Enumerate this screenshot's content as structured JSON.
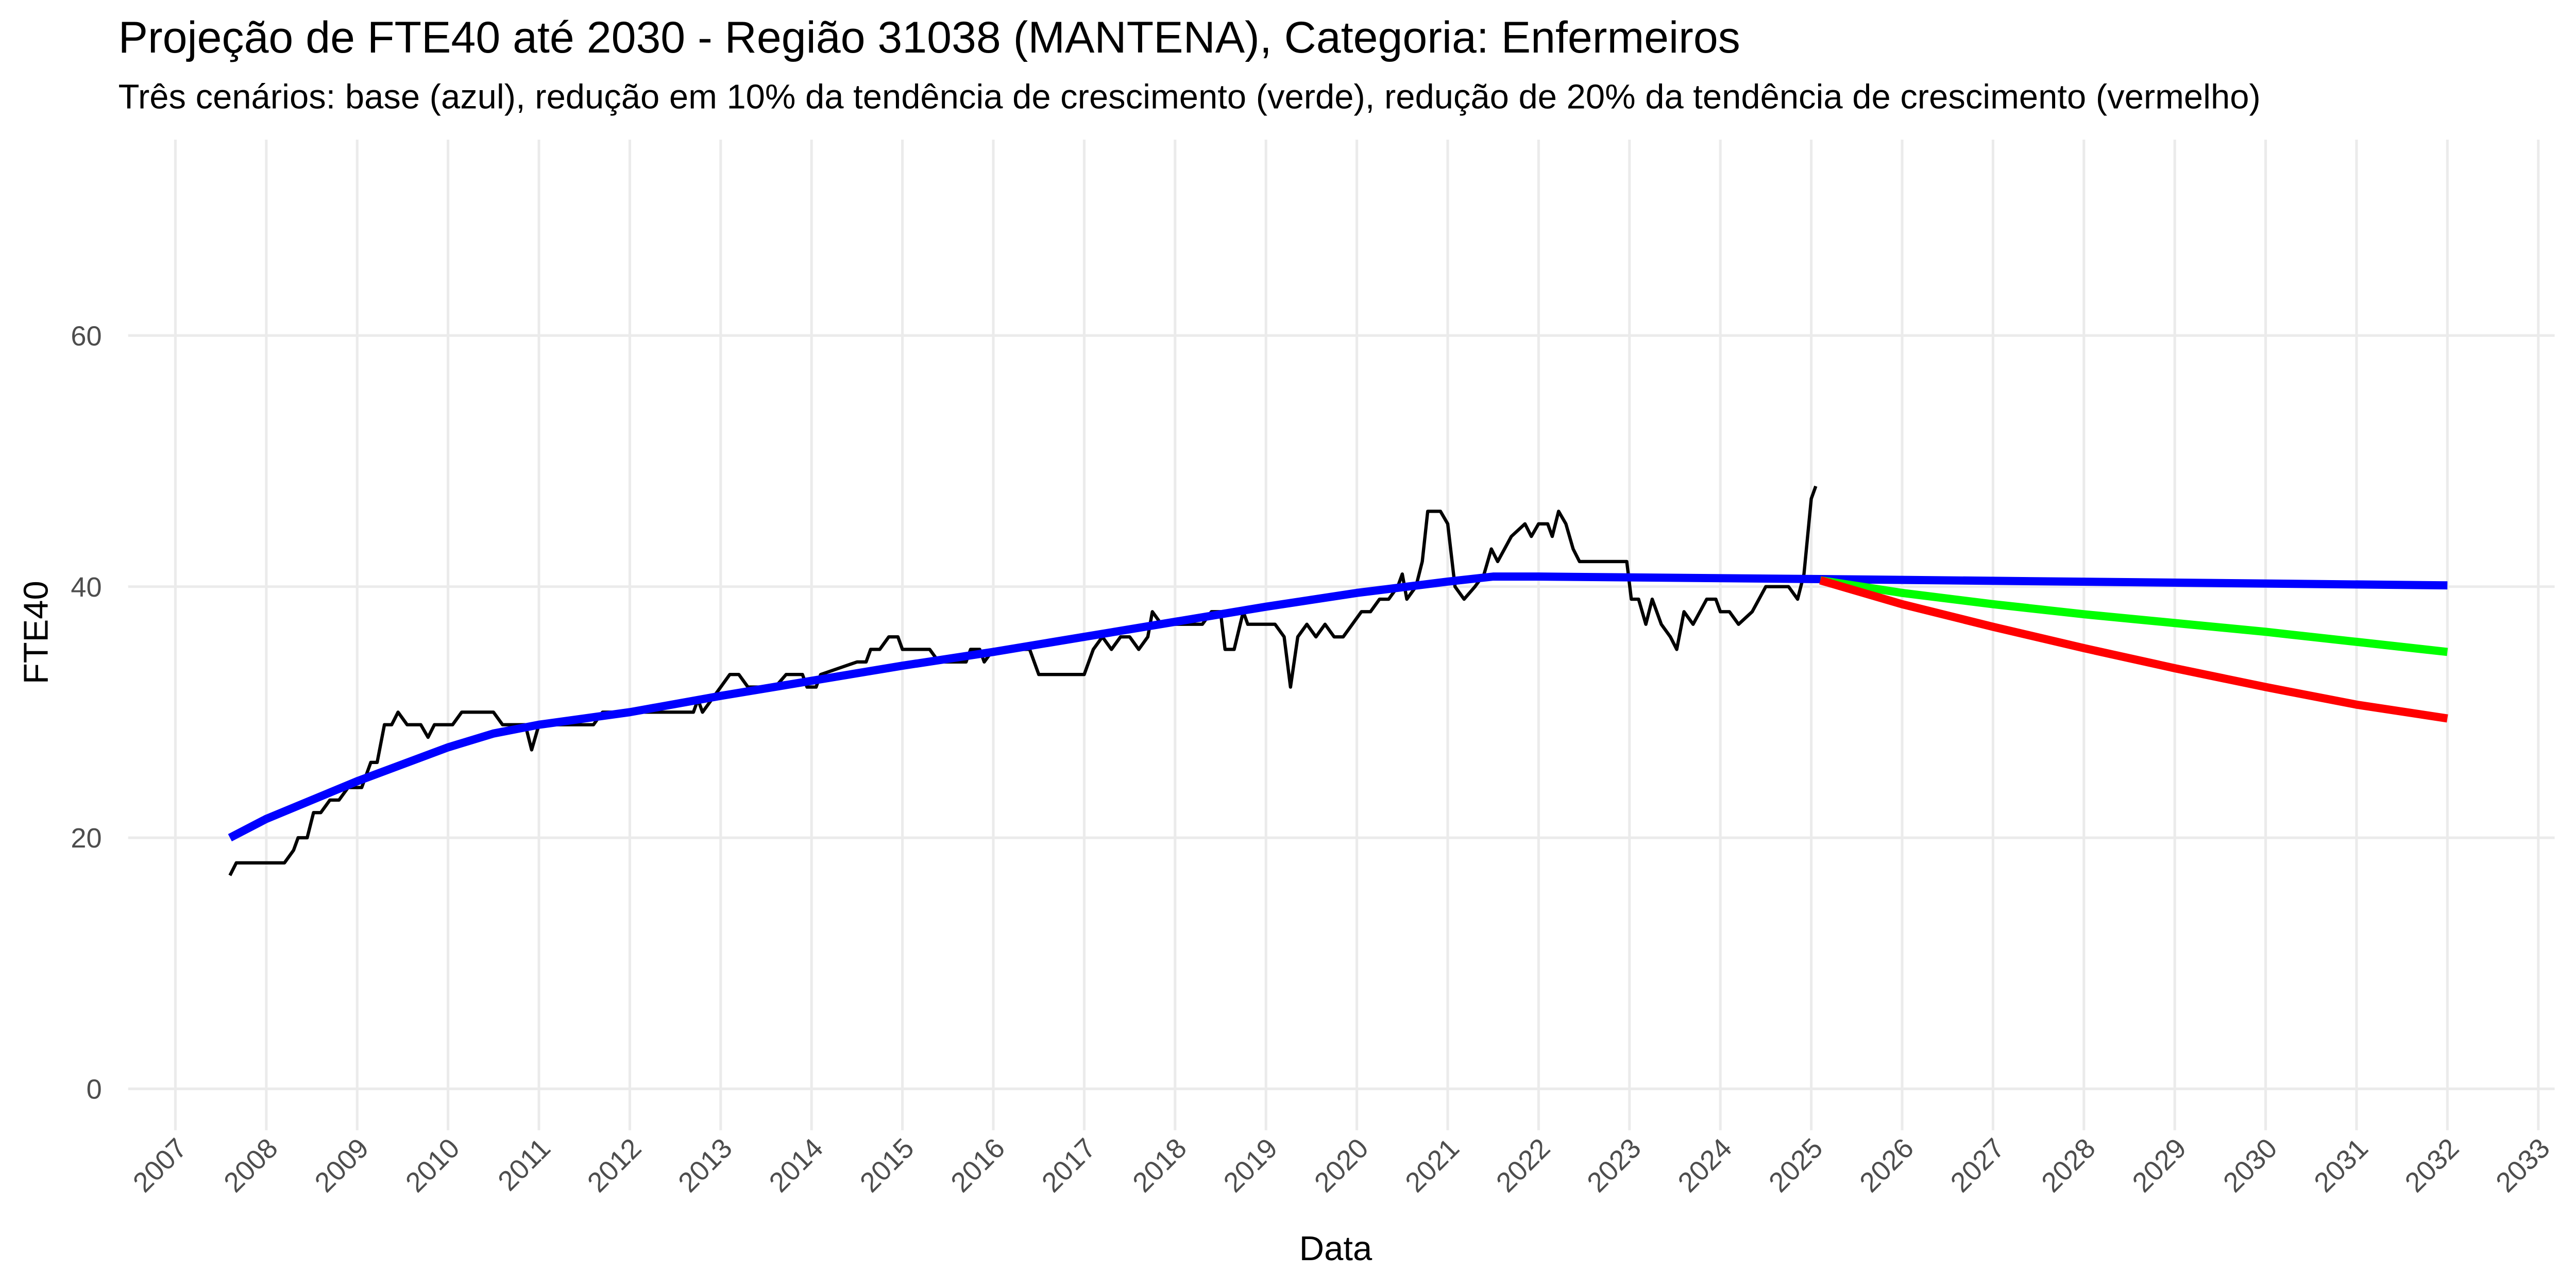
{
  "chart_data": {
    "type": "line",
    "title": "Projeção de FTE40 até 2030 - Região 31038 (MANTENA), Categoria: Enfermeiros",
    "subtitle": "Três cenários: base (azul), redução em 10% da tendência de crescimento (verde), redução de 20% da tendência de crescimento (vermelho)",
    "x_label": "Data",
    "y_label": "FTE40",
    "xlim": [
      2006.48,
      2033.18
    ],
    "ylim": [
      -3.3,
      75.6
    ],
    "xticks": [
      2007,
      2008,
      2009,
      2010,
      2011,
      2012,
      2013,
      2014,
      2015,
      2016,
      2017,
      2018,
      2019,
      2020,
      2021,
      2022,
      2023,
      2024,
      2025,
      2026,
      2027,
      2028,
      2029,
      2030,
      2031,
      2032,
      2033
    ],
    "yticks": [
      0,
      20,
      40,
      60
    ],
    "grid": true,
    "series": [
      {
        "color": "#000000",
        "x": [
          2007.6,
          2007.67,
          2008.2,
          2008.3,
          2008.35,
          2008.45,
          2008.52,
          2008.6,
          2008.7,
          2008.8,
          2008.9,
          2009.05,
          2009.15,
          2009.22,
          2009.3,
          2009.38,
          2009.45,
          2009.55,
          2009.7,
          2009.78,
          2009.85,
          2010.05,
          2010.15,
          2010.5,
          2010.6,
          2010.85,
          2010.92,
          2011.0,
          2011.6,
          2011.7,
          2012.7,
          2012.75,
          2012.8,
          2012.9,
          2013.0,
          2013.1,
          2013.2,
          2013.3,
          2013.6,
          2013.72,
          2013.9,
          2013.95,
          2014.05,
          2014.1,
          2014.5,
          2014.6,
          2014.65,
          2014.75,
          2014.85,
          2014.95,
          2015.0,
          2015.3,
          2015.4,
          2015.7,
          2015.75,
          2015.85,
          2015.9,
          2016.0,
          2016.4,
          2016.5,
          2017.0,
          2017.1,
          2017.2,
          2017.3,
          2017.4,
          2017.5,
          2017.6,
          2017.7,
          2017.75,
          2017.85,
          2018.0,
          2018.3,
          2018.4,
          2018.5,
          2018.55,
          2018.65,
          2018.75,
          2018.8,
          2019.1,
          2019.2,
          2019.27,
          2019.35,
          2019.45,
          2019.55,
          2019.65,
          2019.75,
          2019.85,
          2019.95,
          2020.05,
          2020.15,
          2020.25,
          2020.35,
          2020.45,
          2020.5,
          2020.55,
          2020.65,
          2020.72,
          2020.78,
          2020.92,
          2021.0,
          2021.08,
          2021.18,
          2021.3,
          2021.4,
          2021.48,
          2021.55,
          2021.7,
          2021.85,
          2021.92,
          2022.0,
          2022.1,
          2022.15,
          2022.22,
          2022.3,
          2022.38,
          2022.45,
          2022.97,
          2023.02,
          2023.1,
          2023.18,
          2023.25,
          2023.35,
          2023.45,
          2023.52,
          2023.6,
          2023.7,
          2023.85,
          2023.95,
          2024.0,
          2024.1,
          2024.2,
          2024.35,
          2024.5,
          2024.65,
          2024.75,
          2024.85,
          2024.92,
          2025.0,
          2025.05
        ],
        "values": [
          17,
          18,
          18,
          19,
          20,
          20,
          22,
          22,
          23,
          23,
          24,
          24,
          26,
          26,
          29,
          29,
          30,
          29,
          29,
          28,
          29,
          29,
          30,
          30,
          29,
          29,
          27,
          29,
          29,
          30,
          30,
          31,
          30,
          31,
          32,
          33,
          33,
          32,
          32,
          33,
          33,
          32,
          32,
          33,
          34,
          34,
          35,
          35,
          36,
          36,
          35,
          35,
          34,
          34,
          35,
          35,
          34,
          35,
          35,
          33,
          33,
          35,
          36,
          35,
          36,
          36,
          35,
          36,
          38,
          37,
          37,
          37,
          38,
          38,
          35,
          35,
          38,
          37,
          37,
          36,
          32,
          36,
          37,
          36,
          37,
          36,
          36,
          37,
          38,
          38,
          39,
          39,
          40,
          41,
          39,
          40,
          42,
          46,
          46,
          45,
          40,
          39,
          40,
          41,
          43,
          42,
          44,
          45,
          44,
          45,
          45,
          44,
          46,
          45,
          43,
          42,
          42,
          39,
          39,
          37,
          39,
          37,
          36,
          35,
          38,
          37,
          39,
          39,
          38,
          38,
          37,
          38,
          40,
          40,
          40,
          39,
          41,
          47,
          48
        ]
      },
      {
        "color": "#0000ff",
        "x": [
          2007.6,
          2008,
          2009,
          2010,
          2010.5,
          2011,
          2012,
          2013,
          2014,
          2015,
          2016,
          2017,
          2018,
          2019,
          2020,
          2021,
          2021.5,
          2022,
          2025.1,
          2032
        ],
        "values": [
          20,
          21.5,
          24.5,
          27.2,
          28.3,
          29,
          30,
          31.3,
          32.5,
          33.7,
          34.8,
          36,
          37.2,
          38.4,
          39.5,
          40.4,
          40.8,
          40.8,
          40.6,
          40.1
        ]
      },
      {
        "color": "#00ff00",
        "x": [
          2025.1,
          2026,
          2027,
          2028,
          2029,
          2030,
          2031,
          2032
        ],
        "values": [
          40.5,
          39.5,
          38.6,
          37.8,
          37.1,
          36.4,
          35.6,
          34.8
        ]
      },
      {
        "color": "#ff0000",
        "x": [
          2025.1,
          2026,
          2027,
          2028,
          2029,
          2030,
          2031,
          2032
        ],
        "values": [
          40.5,
          38.6,
          36.8,
          35.1,
          33.5,
          32,
          30.6,
          29.5
        ]
      }
    ]
  }
}
